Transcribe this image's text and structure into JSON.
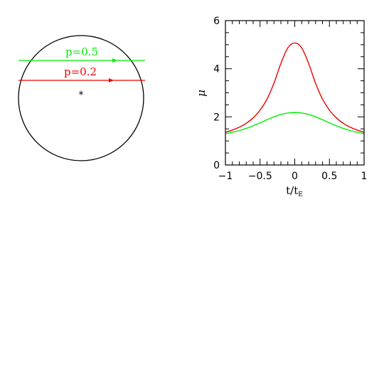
{
  "diagram": {
    "paths": [
      {
        "label": "p=0.5",
        "color": "#00ee00"
      },
      {
        "label": "p=0.2",
        "color": "#ee0000"
      }
    ],
    "source_marker": "*"
  },
  "chart_data": {
    "type": "line",
    "xlabel": "t/t",
    "xlabel_subscript": "E",
    "ylabel": "μ",
    "xlim": [
      -1,
      1
    ],
    "ylim": [
      0,
      6
    ],
    "xticks": [
      -1,
      -0.5,
      0,
      0.5,
      1
    ],
    "xtick_labels": [
      "−1",
      "−0.5",
      "0",
      "0.5",
      "1"
    ],
    "yticks": [
      0,
      2,
      4,
      6
    ],
    "ytick_labels": [
      "0",
      "2",
      "4",
      "6"
    ],
    "grid": false,
    "series": [
      {
        "color": "#ee0000",
        "x": [
          -1,
          -0.9,
          -0.8,
          -0.7,
          -0.6,
          -0.5,
          -0.4,
          -0.3,
          -0.2,
          -0.1,
          0,
          0.1,
          0.2,
          0.3,
          0.4,
          0.5,
          0.6,
          0.7,
          0.8,
          0.9,
          1
        ],
        "values": [
          1.36,
          1.45,
          1.57,
          1.73,
          1.96,
          2.28,
          2.74,
          3.4,
          4.22,
          4.87,
          5.07,
          4.87,
          4.22,
          3.4,
          2.74,
          2.28,
          1.96,
          1.73,
          1.57,
          1.45,
          1.36
        ]
      },
      {
        "color": "#00ee00",
        "x": [
          -1,
          -0.9,
          -0.8,
          -0.7,
          -0.6,
          -0.5,
          -0.4,
          -0.3,
          -0.2,
          -0.1,
          0,
          0.1,
          0.2,
          0.3,
          0.4,
          0.5,
          0.6,
          0.7,
          0.8,
          0.9,
          1
        ],
        "values": [
          1.3,
          1.36,
          1.43,
          1.52,
          1.63,
          1.75,
          1.88,
          2.0,
          2.1,
          2.16,
          2.18,
          2.16,
          2.1,
          2.0,
          1.88,
          1.75,
          1.63,
          1.52,
          1.43,
          1.36,
          1.3
        ]
      }
    ]
  }
}
